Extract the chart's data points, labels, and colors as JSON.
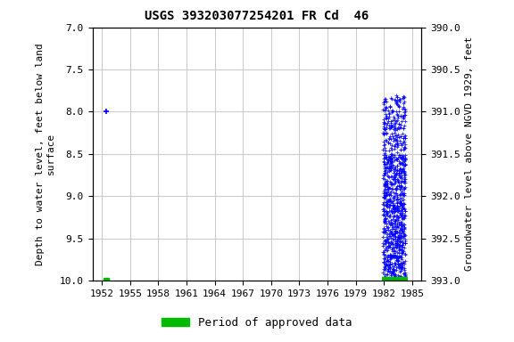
{
  "title": "USGS 393203077254201 FR Cd  46",
  "ylabel_left": "Depth to water level, feet below land\nsurface",
  "ylabel_right": "Groundwater level above NGVD 1929, feet",
  "xlim": [
    1951,
    1986
  ],
  "ylim_left": [
    7.0,
    10.0
  ],
  "ylim_right": [
    390.0,
    393.0
  ],
  "xticks": [
    1952,
    1955,
    1958,
    1961,
    1964,
    1967,
    1970,
    1973,
    1976,
    1979,
    1982,
    1985
  ],
  "yticks_left": [
    7.0,
    7.5,
    8.0,
    8.5,
    9.0,
    9.5,
    10.0
  ],
  "yticks_right": [
    390.0,
    390.5,
    391.0,
    391.5,
    392.0,
    392.5,
    393.0
  ],
  "background_color": "#ffffff",
  "plot_bg_color": "#ffffff",
  "grid_color": "#cccccc",
  "data_color": "#0000ff",
  "approved_color": "#00bb00",
  "isolated_point_x": 1952.5,
  "isolated_point_y": 8.0,
  "isolated_point_x2": 1952.5,
  "isolated_point_y2": 10.0,
  "approved_bar_xstart": 1981.8,
  "approved_bar_xend": 1984.5,
  "approved_bar_y": 10.0,
  "legend_label": "Period of approved data",
  "legend_color": "#00bb00"
}
